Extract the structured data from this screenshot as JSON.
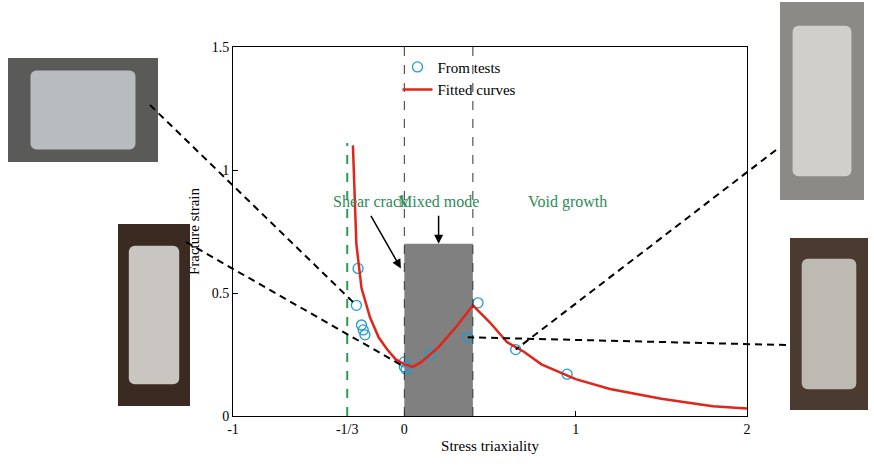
{
  "chart_data": {
    "type": "scatter",
    "x_label": "Stress triaxiality",
    "y_label": "Fracture strain",
    "xlim": [
      -1,
      2
    ],
    "xticks": [
      -1,
      {
        "value": -0.3333,
        "label": "-1/3"
      },
      0,
      1,
      2
    ],
    "ylim": [
      0,
      1.5
    ],
    "yticks": [
      0,
      0.5,
      1,
      1.5
    ],
    "grid": false,
    "legend": "top",
    "series": [
      {
        "name": "From tests",
        "type": "scatter",
        "marker": "circle-open",
        "color": "#1f9bd6",
        "x": [
          -0.27,
          -0.28,
          -0.25,
          -0.24,
          -0.23,
          0.0,
          0.0,
          0.01,
          0.15,
          0.37,
          0.43,
          0.65,
          0.95
        ],
        "values": [
          0.6,
          0.45,
          0.37,
          0.35,
          0.33,
          0.22,
          0.2,
          0.19,
          0.25,
          0.32,
          0.46,
          0.27,
          0.17
        ]
      },
      {
        "name": "Fitted curves",
        "type": "line",
        "line_style": "solid",
        "color": "#e0251b",
        "x": [
          -0.3,
          -0.29,
          -0.28,
          -0.25,
          -0.2,
          -0.15,
          -0.1,
          -0.05,
          0.0,
          0.05,
          0.1,
          0.2,
          0.3,
          0.4,
          0.5,
          0.6,
          0.7,
          0.8,
          1.0,
          1.2,
          1.5,
          1.8,
          2.0
        ],
        "values": [
          1.1,
          0.85,
          0.7,
          0.52,
          0.4,
          0.32,
          0.27,
          0.23,
          0.21,
          0.2,
          0.22,
          0.28,
          0.36,
          0.45,
          0.38,
          0.3,
          0.26,
          0.21,
          0.15,
          0.11,
          0.07,
          0.04,
          0.03
        ]
      }
    ],
    "reference_line": {
      "x": -0.3333,
      "color": "#2e9b4f",
      "line_style": "dashed"
    },
    "shaded_region": {
      "x": [
        0,
        0.4
      ],
      "y": [
        0,
        0.7
      ],
      "color": "#808080"
    },
    "annotations": [
      {
        "text": "Shear crack",
        "x": -0.2,
        "y": 0.87,
        "color": "#2e8b57",
        "arrow_to": [
          -0.02,
          0.6
        ]
      },
      {
        "text": "Mixed mode",
        "x": 0.2,
        "y": 0.87,
        "color": "#2e8b57",
        "arrow_to": [
          0.2,
          0.7
        ]
      },
      {
        "text": "Void growth",
        "x": 0.95,
        "y": 0.87,
        "color": "#2e8b57"
      }
    ]
  }
}
